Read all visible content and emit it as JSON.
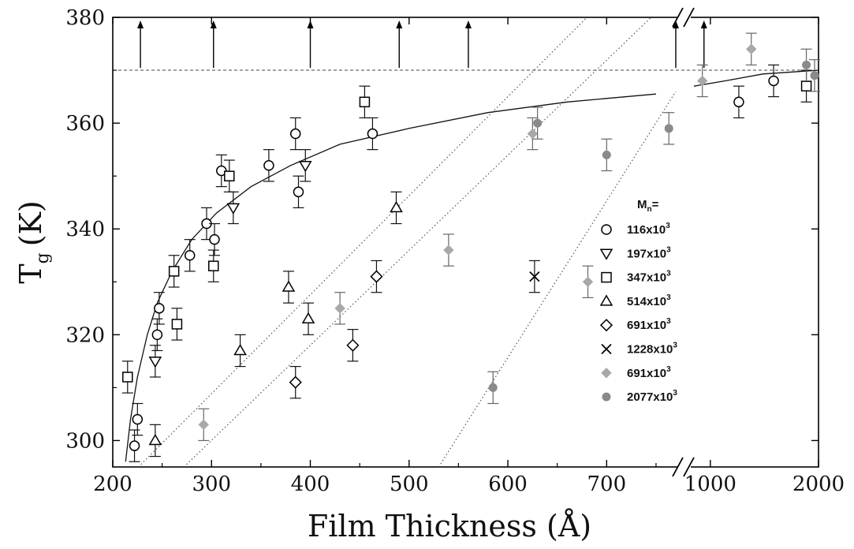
{
  "chart_data": {
    "type": "scatter",
    "title": "",
    "xlabel": "Film Thickness (Å)",
    "ylabel_main": "T",
    "ylabel_sub": "g",
    "ylabel_unit": "(K)",
    "ylim": [
      295,
      380
    ],
    "xlim_main": [
      200,
      770
    ],
    "xlim_inset": [
      900,
      2000
    ],
    "x_axis_break": "between 770 and 900",
    "x_ticks": [
      200,
      300,
      400,
      500,
      600,
      700,
      1000,
      2000
    ],
    "y_ticks": [
      300,
      320,
      340,
      360,
      380
    ],
    "bulk_tg": 370,
    "bulk_arrows_x": [
      228,
      302,
      400,
      490,
      560,
      770,
      960
    ],
    "legend": {
      "title_main": "M",
      "title_sub": "n",
      "title_suffix": "=",
      "entries": [
        {
          "label_base": "116x10",
          "label_exp": "3",
          "marker": "circle",
          "color": "#000000"
        },
        {
          "label_base": "197x10",
          "label_exp": "3",
          "marker": "triangle-down",
          "color": "#000000"
        },
        {
          "label_base": "347x10",
          "label_exp": "3",
          "marker": "square",
          "color": "#000000"
        },
        {
          "label_base": "514x10",
          "label_exp": "3",
          "marker": "triangle-up",
          "color": "#000000"
        },
        {
          "label_base": "691x10",
          "label_exp": "3",
          "marker": "diamond",
          "color": "#000000"
        },
        {
          "label_base": "1228x10",
          "label_exp": "3",
          "marker": "cross",
          "color": "#000000"
        },
        {
          "label_base": "691x10",
          "label_exp": "3",
          "marker": "filled-diamond",
          "color": "#999999"
        },
        {
          "label_base": "2077x10",
          "label_exp": "3",
          "marker": "filled-circle",
          "color": "#888888"
        }
      ]
    },
    "series": [
      {
        "name": "116x10^3",
        "marker": "circle",
        "points": [
          [
            222,
            299,
            3
          ],
          [
            225,
            304,
            3
          ],
          [
            247,
            325,
            3
          ],
          [
            245,
            320,
            3
          ],
          [
            278,
            335,
            3
          ],
          [
            295,
            341,
            3
          ],
          [
            303,
            338,
            3
          ],
          [
            310,
            351,
            3
          ],
          [
            358,
            352,
            3
          ],
          [
            385,
            358,
            3
          ],
          [
            388,
            347,
            3
          ],
          [
            463,
            358,
            3
          ],
          [
            1200,
            364,
            3
          ],
          [
            1500,
            368,
            3
          ]
        ]
      },
      {
        "name": "197x10^3",
        "marker": "triangle-down",
        "points": [
          [
            243,
            315,
            3
          ],
          [
            322,
            344,
            3
          ],
          [
            395,
            352,
            3
          ]
        ]
      },
      {
        "name": "347x10^3",
        "marker": "square",
        "points": [
          [
            215,
            312,
            3
          ],
          [
            262,
            332,
            3
          ],
          [
            265,
            322,
            3
          ],
          [
            302,
            333,
            3
          ],
          [
            318,
            350,
            3
          ],
          [
            455,
            364,
            3
          ],
          [
            1850,
            367,
            3
          ]
        ]
      },
      {
        "name": "514x10^3",
        "marker": "triangle-up",
        "points": [
          [
            243,
            300,
            3
          ],
          [
            329,
            317,
            3
          ],
          [
            378,
            329,
            3
          ],
          [
            398,
            323,
            3
          ],
          [
            487,
            344,
            3
          ]
        ]
      },
      {
        "name": "691x10^3",
        "marker": "diamond",
        "points": [
          [
            385,
            311,
            3
          ],
          [
            443,
            318,
            3
          ],
          [
            467,
            331,
            3
          ]
        ]
      },
      {
        "name": "1228x10^3",
        "marker": "cross",
        "points": [
          [
            627,
            331,
            3
          ]
        ]
      },
      {
        "name": "691x10^3 (filled)",
        "marker": "filled-diamond",
        "points": [
          [
            292,
            303,
            3
          ],
          [
            430,
            325,
            3
          ],
          [
            540,
            336,
            3
          ],
          [
            625,
            358,
            3
          ],
          [
            681,
            330,
            3
          ],
          [
            950,
            368,
            3
          ],
          [
            1300,
            374,
            3
          ]
        ]
      },
      {
        "name": "2077x10^3",
        "marker": "filled-circle",
        "points": [
          [
            585,
            310,
            3
          ],
          [
            630,
            360,
            3
          ],
          [
            700,
            354,
            3
          ],
          [
            763,
            359,
            3
          ],
          [
            1850,
            371,
            3
          ],
          [
            1950,
            369,
            3
          ]
        ]
      }
    ],
    "fit_curve": {
      "style": "solid",
      "points": [
        [
          213,
          296
        ],
        [
          218,
          304
        ],
        [
          225,
          312
        ],
        [
          235,
          320
        ],
        [
          245,
          326
        ],
        [
          260,
          332
        ],
        [
          280,
          338
        ],
        [
          305,
          343
        ],
        [
          340,
          348
        ],
        [
          380,
          352
        ],
        [
          430,
          356
        ],
        [
          500,
          359
        ],
        [
          580,
          362
        ],
        [
          660,
          364
        ],
        [
          750,
          365.5
        ],
        [
          900,
          367
        ],
        [
          1100,
          368
        ],
        [
          1400,
          369.3
        ],
        [
          1800,
          369.8
        ],
        [
          2000,
          370
        ]
      ]
    },
    "dotted_lines": [
      {
        "points": [
          [
            226,
            295
          ],
          [
            680,
            380
          ]
        ]
      },
      {
        "points": [
          [
            272,
            295
          ],
          [
            745,
            380
          ]
        ]
      },
      {
        "points": [
          [
            530,
            295
          ],
          [
            770,
            366
          ]
        ]
      }
    ]
  }
}
